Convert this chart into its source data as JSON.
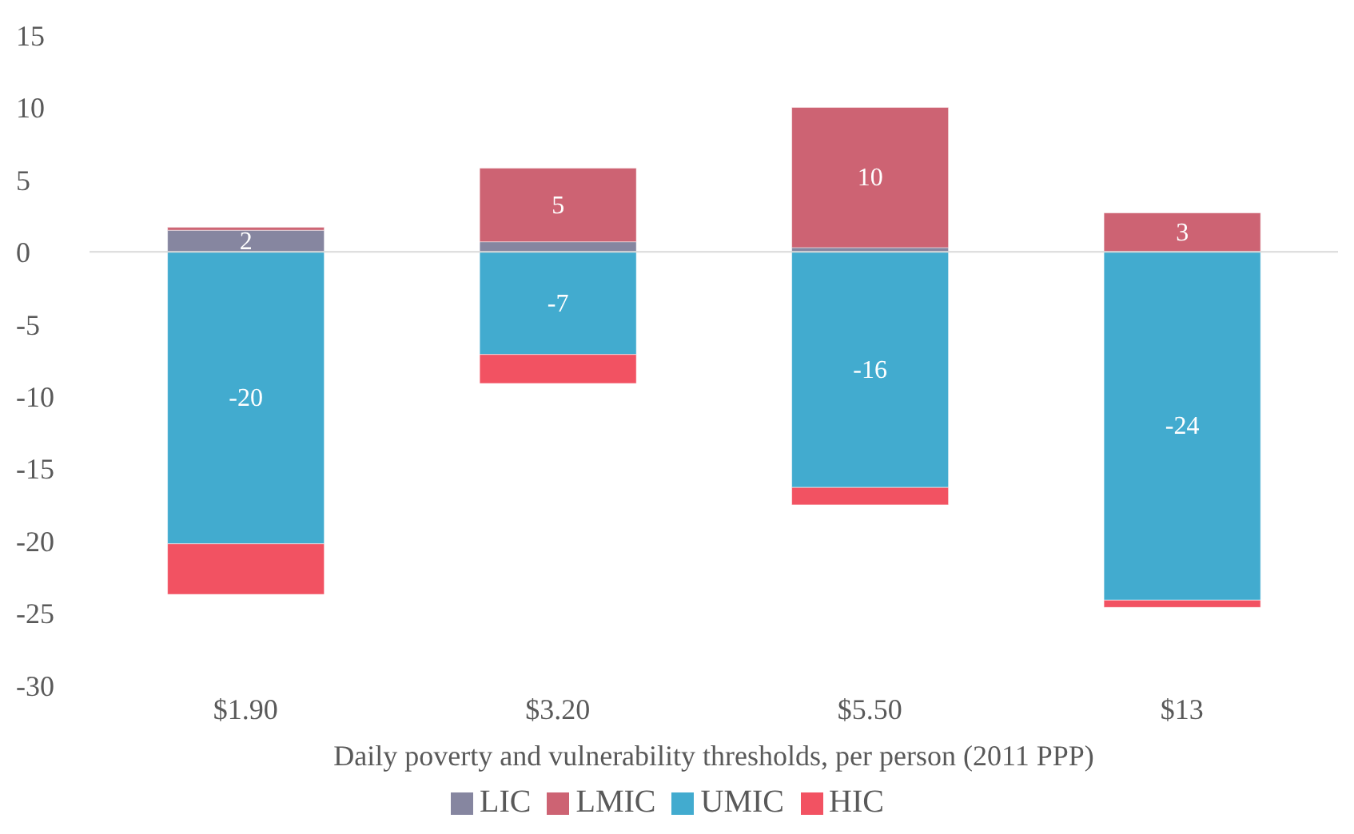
{
  "chart_data": {
    "type": "bar",
    "stacked": true,
    "xlabel": "Daily poverty and vulnerability thresholds, per person (2011 PPP)",
    "categories": [
      "$1.90",
      "$3.20",
      "$5.50",
      "$13"
    ],
    "series": [
      {
        "name": "LIC",
        "color": "#8686a0",
        "values": [
          1.5,
          0.7,
          0.3,
          0
        ],
        "value_labels": [
          "2",
          null,
          null,
          null
        ]
      },
      {
        "name": "LMIC",
        "color": "#cd6373",
        "values": [
          0.2,
          5.1,
          9.7,
          2.7
        ],
        "value_labels": [
          null,
          "5",
          "10",
          "3"
        ]
      },
      {
        "name": "UMIC",
        "color": "#42abcf",
        "values": [
          -20.2,
          -7.1,
          -16.3,
          -24.1
        ],
        "value_labels": [
          "-20",
          "-7",
          "-16",
          "-24"
        ]
      },
      {
        "name": "HIC",
        "color": "#f25262",
        "values": [
          -3.5,
          -2,
          -1.2,
          -0.5
        ],
        "value_labels": [
          null,
          null,
          null,
          null
        ]
      }
    ],
    "ylim": [
      -30,
      15
    ],
    "yticks": [
      -30,
      -25,
      -20,
      -15,
      -10,
      -5,
      0,
      5,
      10,
      15
    ],
    "grid": false,
    "legend": "bottom",
    "ref_lines": [
      {
        "axis": "y",
        "value": 0,
        "color": "#d9d9d9"
      }
    ]
  }
}
